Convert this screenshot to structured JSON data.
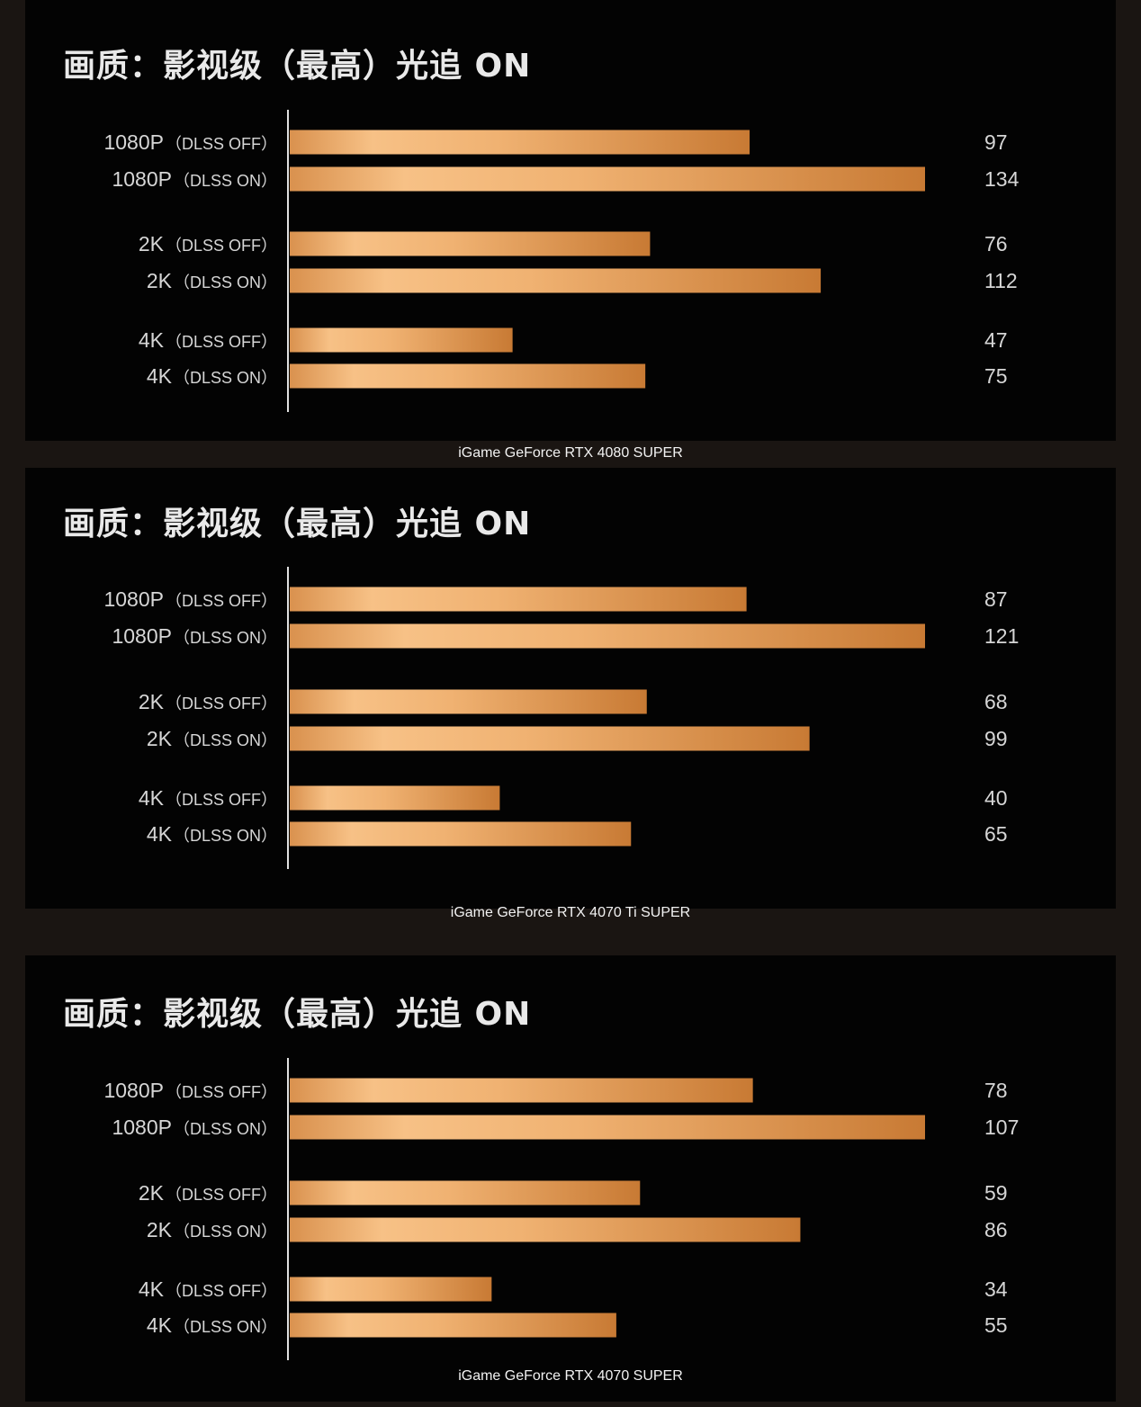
{
  "chart_data": [
    {
      "type": "bar",
      "orientation": "horizontal",
      "title": "画质：影视级（最高）光追 ON",
      "caption": "iGame GeForce RTX 4080 SUPER",
      "categories": [
        {
          "main": "1080P",
          "sub": "（DLSS OFF）"
        },
        {
          "main": "1080P",
          "sub": "（DLSS ON）"
        },
        {
          "main": "2K",
          "sub": "（DLSS OFF）"
        },
        {
          "main": "2K",
          "sub": "（DLSS ON）"
        },
        {
          "main": "4K",
          "sub": "（DLSS OFF）"
        },
        {
          "main": "4K",
          "sub": "（DLSS ON）"
        }
      ],
      "values": [
        97,
        134,
        76,
        112,
        47,
        75
      ],
      "xlim": [
        0,
        134
      ]
    },
    {
      "type": "bar",
      "orientation": "horizontal",
      "title": "画质：影视级（最高）光追 ON",
      "caption": "iGame GeForce RTX 4070 Ti SUPER",
      "categories": [
        {
          "main": "1080P",
          "sub": "（DLSS OFF）"
        },
        {
          "main": "1080P",
          "sub": "（DLSS ON）"
        },
        {
          "main": "2K",
          "sub": "（DLSS OFF）"
        },
        {
          "main": "2K",
          "sub": "（DLSS ON）"
        },
        {
          "main": "4K",
          "sub": "（DLSS OFF）"
        },
        {
          "main": "4K",
          "sub": "（DLSS ON）"
        }
      ],
      "values": [
        87,
        121,
        68,
        99,
        40,
        65
      ],
      "xlim": [
        0,
        121
      ]
    },
    {
      "type": "bar",
      "orientation": "horizontal",
      "title": "画质：影视级（最高）光追 ON",
      "caption": "iGame GeForce RTX 4070 SUPER",
      "categories": [
        {
          "main": "1080P",
          "sub": "（DLSS OFF）"
        },
        {
          "main": "1080P",
          "sub": "（DLSS ON）"
        },
        {
          "main": "2K",
          "sub": "（DLSS OFF）"
        },
        {
          "main": "2K",
          "sub": "（DLSS ON）"
        },
        {
          "main": "4K",
          "sub": "（DLSS OFF）"
        },
        {
          "main": "4K",
          "sub": "（DLSS ON）"
        }
      ],
      "values": [
        78,
        107,
        59,
        86,
        34,
        55
      ],
      "xlim": [
        0,
        107
      ]
    }
  ],
  "colors": {
    "bar_light": "#f7c186",
    "bar_dark": "#c87a34",
    "background": "#030303",
    "text": "#d6d6d6"
  }
}
